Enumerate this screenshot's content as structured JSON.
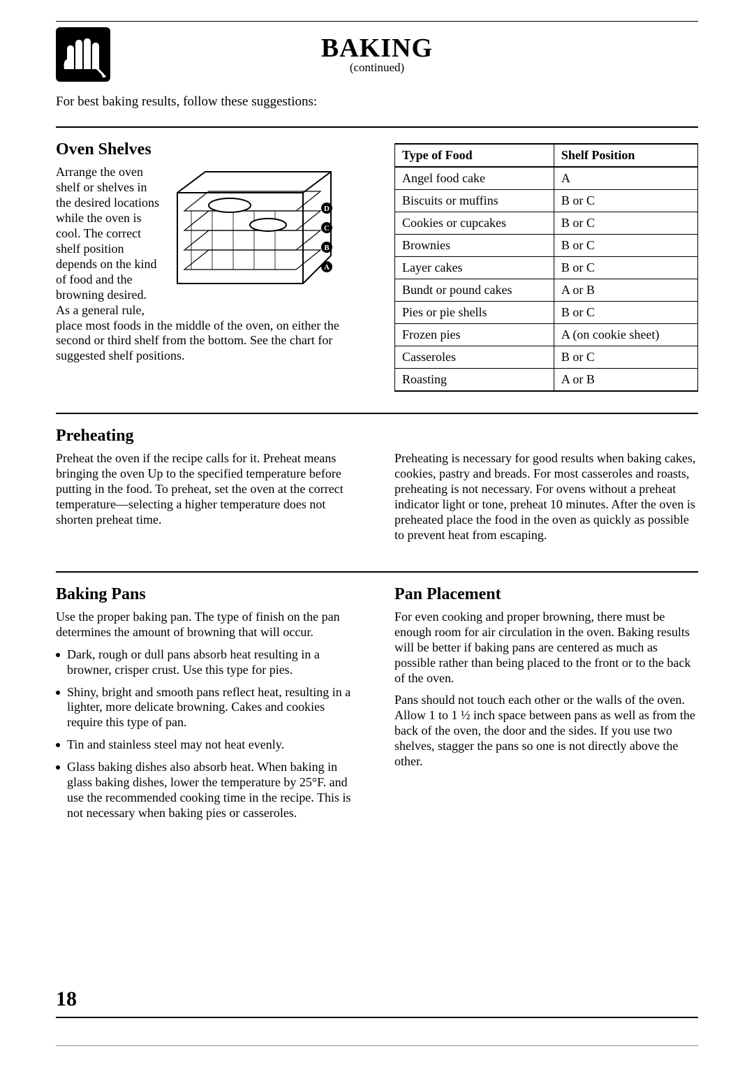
{
  "title": "BAKING",
  "subtitle": "(continued)",
  "intro": "For best baking results, follow these suggestions:",
  "page_number": "18",
  "shelves": {
    "heading": "Oven Shelves",
    "side_text": "Arrange the oven shelf or shelves in the desired locations while the oven is cool. The correct shelf position depends on the kind of food and the browning desired. As a general rule,",
    "below_text": "place most foods in the middle of the oven, on either the second or third shelf from the bottom. See the chart for suggested shelf positions.",
    "table": {
      "columns": [
        "Type of Food",
        "Shelf Position"
      ],
      "rows": [
        [
          "Angel food cake",
          "A"
        ],
        [
          "Biscuits or muffins",
          "B or C"
        ],
        [
          "Cookies or cupcakes",
          "B or C"
        ],
        [
          "Brownies",
          "B or C"
        ],
        [
          "Layer cakes",
          "B or C"
        ],
        [
          "Bundt or pound cakes",
          "A or B"
        ],
        [
          "Pies or pie shells",
          "B or C"
        ],
        [
          "Frozen pies",
          "A (on cookie sheet)"
        ],
        [
          "Casseroles",
          "B or C"
        ],
        [
          "Roasting",
          "A or B"
        ]
      ]
    },
    "labels": [
      "A",
      "B",
      "C",
      "D"
    ]
  },
  "preheating": {
    "heading": "Preheating",
    "left": "Preheat the oven if the recipe calls for it. Preheat means bringing the oven Up to the specified temperature before putting in the food. To preheat, set the oven at the correct temperature—selecting a higher temperature does not shorten preheat time.",
    "right": "Preheating is necessary for good results when baking cakes, cookies, pastry and breads. For most casseroles and roasts, preheating is not necessary. For ovens without a preheat indicator light or tone, preheat 10 minutes. After the oven is preheated place the food in the oven as quickly as possible to prevent heat from escaping."
  },
  "pans": {
    "heading": "Baking Pans",
    "intro": "Use the proper baking pan. The type of finish on the pan determines the amount of browning that will occur.",
    "bullets": [
      "Dark, rough or dull pans absorb heat resulting in a browner, crisper crust. Use this type for pies.",
      "Shiny, bright and smooth pans reflect heat, resulting in a lighter, more delicate browning. Cakes and cookies require this type of pan.",
      "Tin and stainless steel may not heat evenly.",
      "Glass baking dishes also absorb heat. When baking in glass baking dishes, lower the temperature by 25°F. and use the recommended cooking time in the recipe. This is not necessary when baking pies or casseroles."
    ]
  },
  "placement": {
    "heading": "Pan Placement",
    "p1": "For even cooking and proper browning, there must be enough room for air circulation in the oven. Baking results will be better if baking pans are centered as much as possible rather than being placed to the front or to the back of the oven.",
    "p2": "Pans should not touch each other or the walls of the oven. Allow 1 to 1 ½ inch space between pans as well as from the back of the oven, the door and the sides. If you use two shelves, stagger the pans so one is not directly above the other."
  }
}
